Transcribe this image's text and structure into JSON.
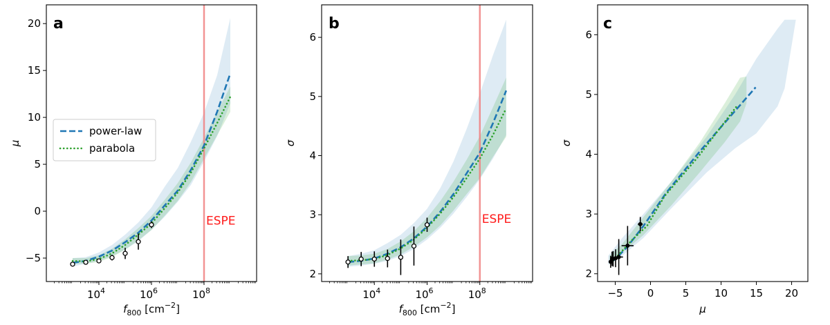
{
  "chart_data": [
    {
      "panel": "a",
      "type": "line",
      "xscale": "log",
      "xlabel": "f800 [cm−2]",
      "ylabel": "μ",
      "xlim": [
        100,
        10000000000
      ],
      "ylim": [
        -7.5,
        22
      ],
      "xticks": [
        {
          "value": 10000,
          "exp": "4"
        },
        {
          "value": 1000000,
          "exp": "6"
        },
        {
          "value": 100000000,
          "exp": "8"
        }
      ],
      "yticks": [
        -5,
        0,
        5,
        10,
        15,
        20
      ],
      "vline": {
        "x": 100000000,
        "label": "ESPE"
      },
      "legend": {
        "position": "center-left",
        "entries": [
          "power-law",
          "parabola"
        ]
      },
      "series": [
        {
          "name": "power-law",
          "style": "dashed",
          "color": "#1f77b4",
          "x": [
            1000,
            3160,
            10000,
            31600,
            100000,
            316000,
            1000000,
            3160000,
            10000000,
            31600000,
            100000000,
            316000000,
            1000000000
          ],
          "values": [
            -5.5,
            -5.3,
            -4.85,
            -4.2,
            -3.3,
            -2.3,
            -1.0,
            0.6,
            2.2,
            4.4,
            7.0,
            10.6,
            14.7
          ]
        },
        {
          "name": "parabola",
          "style": "dotted",
          "color": "#2ca02c",
          "x": [
            1000,
            3160,
            10000,
            31600,
            100000,
            316000,
            1000000,
            3160000,
            10000000,
            31600000,
            100000000,
            316000000,
            1000000000
          ],
          "values": [
            -5.3,
            -5.35,
            -5.1,
            -4.5,
            -3.6,
            -2.5,
            -1.3,
            0.3,
            2.0,
            4.1,
            6.7,
            9.4,
            12.2
          ]
        }
      ],
      "bands": [
        {
          "name": "power-law",
          "color": "#1f77b4",
          "x": [
            1000,
            3160,
            10000,
            31600,
            100000,
            316000,
            1000000,
            3160000,
            10000000,
            31600000,
            100000000,
            316000000,
            1000000000
          ],
          "lower": [
            -5.9,
            -5.6,
            -5.3,
            -4.8,
            -4.1,
            -3.2,
            -2.0,
            -0.6,
            1.0,
            2.8,
            5.3,
            8.0,
            11.5
          ],
          "upper": [
            -5.0,
            -4.9,
            -4.4,
            -3.6,
            -2.5,
            -1.2,
            0.4,
            2.6,
            4.6,
            7.4,
            10.5,
            14.5,
            20.6
          ]
        },
        {
          "name": "parabola",
          "color": "#2ca02c",
          "x": [
            1000,
            3160,
            10000,
            31600,
            100000,
            316000,
            1000000,
            3160000,
            10000000,
            31600000,
            100000000,
            316000000,
            1000000000
          ],
          "lower": [
            -5.6,
            -5.6,
            -5.4,
            -4.9,
            -4.1,
            -3.1,
            -2.0,
            -0.5,
            1.1,
            3.1,
            5.6,
            8.1,
            10.6
          ],
          "upper": [
            -5.0,
            -5.0,
            -4.7,
            -4.0,
            -3.0,
            -1.8,
            -0.5,
            1.2,
            3.0,
            5.2,
            7.8,
            10.6,
            13.3
          ]
        }
      ],
      "points": {
        "x": [
          1000,
          3160,
          10000,
          31600,
          100000,
          316000,
          1000000
        ],
        "values": [
          -5.65,
          -5.45,
          -5.3,
          -4.95,
          -4.5,
          -3.25,
          -1.45
        ],
        "err": [
          0.15,
          0.2,
          0.25,
          0.3,
          0.6,
          0.85,
          0.35
        ]
      }
    },
    {
      "panel": "b",
      "type": "line",
      "xscale": "log",
      "xlabel": "f800 [cm−2]",
      "ylabel": "σ",
      "xlim": [
        100,
        10000000000
      ],
      "ylim": [
        1.87,
        6.55
      ],
      "xticks": [
        {
          "value": 10000,
          "exp": "4"
        },
        {
          "value": 1000000,
          "exp": "6"
        },
        {
          "value": 100000000,
          "exp": "8"
        }
      ],
      "yticks": [
        2,
        3,
        4,
        5,
        6
      ],
      "vline": {
        "x": 100000000,
        "label": "ESPE"
      },
      "series": [
        {
          "name": "power-law",
          "style": "dashed",
          "color": "#1f77b4",
          "x": [
            1000,
            3160,
            10000,
            31600,
            100000,
            316000,
            1000000,
            3160000,
            10000000,
            31600000,
            100000000,
            316000000,
            1000000000
          ],
          "values": [
            2.2,
            2.22,
            2.26,
            2.34,
            2.45,
            2.6,
            2.8,
            3.05,
            3.35,
            3.7,
            4.05,
            4.55,
            5.1
          ]
        },
        {
          "name": "parabola",
          "style": "dotted",
          "color": "#2ca02c",
          "x": [
            1000,
            3160,
            10000,
            31600,
            100000,
            316000,
            1000000,
            3160000,
            10000000,
            31600000,
            100000000,
            316000000,
            1000000000
          ],
          "values": [
            2.22,
            2.23,
            2.25,
            2.32,
            2.43,
            2.58,
            2.78,
            3.02,
            3.3,
            3.62,
            3.95,
            4.35,
            4.8
          ]
        }
      ],
      "bands": [
        {
          "name": "power-law",
          "color": "#1f77b4",
          "x": [
            1000,
            3160,
            10000,
            31600,
            100000,
            316000,
            1000000,
            3160000,
            10000000,
            31600000,
            100000000,
            316000000,
            1000000000
          ],
          "lower": [
            2.12,
            2.14,
            2.17,
            2.22,
            2.3,
            2.42,
            2.58,
            2.78,
            3.02,
            3.3,
            3.6,
            3.95,
            4.35
          ],
          "upper": [
            2.3,
            2.34,
            2.4,
            2.52,
            2.66,
            2.86,
            3.1,
            3.45,
            3.9,
            4.45,
            5.05,
            5.7,
            6.3
          ]
        },
        {
          "name": "parabola",
          "color": "#2ca02c",
          "x": [
            1000,
            3160,
            10000,
            31600,
            100000,
            316000,
            1000000,
            3160000,
            10000000,
            31600000,
            100000000,
            316000000,
            1000000000
          ],
          "lower": [
            2.14,
            2.16,
            2.18,
            2.24,
            2.33,
            2.46,
            2.62,
            2.82,
            3.07,
            3.35,
            3.62,
            3.98,
            4.32
          ],
          "upper": [
            2.3,
            2.31,
            2.34,
            2.42,
            2.55,
            2.72,
            2.95,
            3.23,
            3.56,
            3.93,
            4.33,
            4.82,
            5.32
          ]
        }
      ],
      "points": {
        "x": [
          1000,
          3160,
          10000,
          31600,
          100000,
          316000,
          1000000
        ],
        "values": [
          2.2,
          2.25,
          2.25,
          2.26,
          2.28,
          2.47,
          2.83
        ],
        "err": [
          0.1,
          0.12,
          0.13,
          0.15,
          0.3,
          0.33,
          0.12
        ]
      }
    },
    {
      "panel": "c",
      "type": "line",
      "xscale": "linear",
      "xlabel": "μ",
      "ylabel": "σ",
      "xlim": [
        -7.5,
        22.3
      ],
      "ylim": [
        1.87,
        6.5
      ],
      "xticks": [
        -5,
        0,
        5,
        10,
        15,
        20
      ],
      "yticks": [
        2,
        3,
        4,
        5,
        6
      ],
      "series": [
        {
          "name": "power-law",
          "style": "dashed",
          "color": "#1f77b4",
          "x": [
            -5.5,
            -4.85,
            -3.3,
            -1.0,
            2.2,
            7.0,
            14.9
          ],
          "values": [
            2.2,
            2.26,
            2.45,
            2.8,
            3.35,
            4.05,
            5.12
          ]
        },
        {
          "name": "parabola",
          "style": "dotted",
          "color": "#2ca02c",
          "x": [
            -5.3,
            -4.5,
            -2.5,
            -0.5,
            2.0,
            6.7,
            12.2
          ],
          "values": [
            2.22,
            2.32,
            2.58,
            2.8,
            3.3,
            3.95,
            4.8
          ]
        }
      ],
      "bands": [
        {
          "name": "power-law",
          "color": "#1f77b4",
          "x": [
            -6.0,
            -4.0,
            -1.0,
            3.0,
            8.0,
            12.0,
            15.0,
            18.0,
            19.0,
            20.6
          ],
          "lower": [
            2.15,
            2.3,
            2.6,
            3.1,
            3.7,
            4.1,
            4.35,
            4.8,
            5.1,
            6.25
          ],
          "upper": [
            2.3,
            2.6,
            3.0,
            3.55,
            4.3,
            5.0,
            5.6,
            6.1,
            6.25,
            6.25
          ]
        },
        {
          "name": "parabola",
          "color": "#2ca02c",
          "x": [
            -5.8,
            -4.0,
            -1.0,
            3.0,
            7.0,
            10.5,
            12.7,
            13.6
          ],
          "lower": [
            2.15,
            2.35,
            2.65,
            3.15,
            3.7,
            4.2,
            4.55,
            4.85
          ],
          "upper": [
            2.3,
            2.5,
            2.95,
            3.55,
            4.2,
            4.85,
            5.28,
            5.3
          ]
        }
      ],
      "points": {
        "x": [
          -5.65,
          -5.45,
          -5.3,
          -4.95,
          -4.5,
          -3.25,
          -1.45
        ],
        "values": [
          2.2,
          2.25,
          2.25,
          2.26,
          2.28,
          2.47,
          2.83
        ],
        "xerr": [
          0.15,
          0.2,
          0.25,
          0.3,
          0.6,
          0.85,
          0.35
        ],
        "yerr": [
          0.1,
          0.12,
          0.13,
          0.15,
          0.3,
          0.33,
          0.12
        ]
      }
    }
  ]
}
